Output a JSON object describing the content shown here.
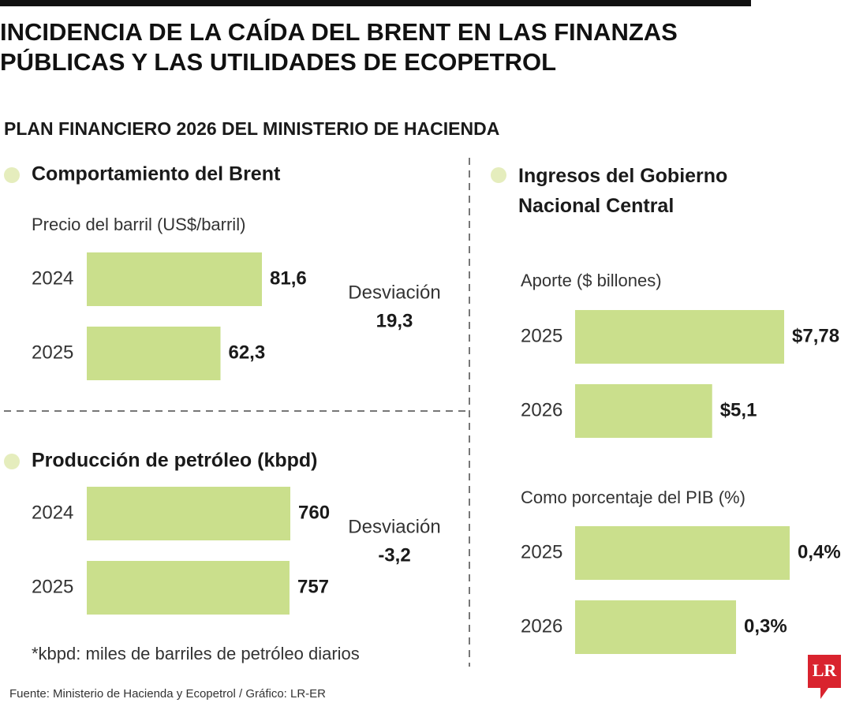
{
  "title": "INCIDENCIA DE LA CAÍDA DEL BRENT EN LAS FINANZAS PÚBLICAS Y LAS UTILIDADES DE ECOPETROL",
  "subtitle": "PLAN FINANCIERO 2026 DEL MINISTERIO DE HACIENDA",
  "source": "Fuente: Ministerio de Hacienda y Ecopetrol / Gráfico: LR-ER",
  "logo": "LR",
  "chart_data": [
    {
      "type": "bar",
      "title": "Comportamiento del Brent",
      "subtitle": "Precio del barril (US$/barril)",
      "categories": [
        "2024",
        "2025"
      ],
      "values": [
        81.6,
        62.3
      ],
      "value_labels": [
        "81,6",
        "62,3"
      ],
      "color": "#cadf8c",
      "deviation": {
        "label": "Desviación",
        "value": "19,3"
      }
    },
    {
      "type": "bar",
      "title": "Producción de petróleo (kbpd)",
      "categories": [
        "2024",
        "2025"
      ],
      "values": [
        760,
        757
      ],
      "color": "#cadf8c",
      "deviation": {
        "label": "Desviación",
        "value": "-3,2"
      },
      "note": "*kbpd: miles de barriles de petróleo diarios"
    },
    {
      "type": "bar",
      "title": "Ingresos del Gobierno Nacional Central",
      "subtitle": "Aporte ($ billones)",
      "categories": [
        "2025",
        "2026"
      ],
      "values": [
        7.78,
        5.1
      ],
      "value_labels": [
        "$7,78",
        "$5,1"
      ],
      "color": "#cadf8c"
    },
    {
      "type": "bar",
      "subtitle": "Como porcentaje del PIB (%)",
      "categories": [
        "2025",
        "2026"
      ],
      "values": [
        0.4,
        0.3
      ],
      "value_labels": [
        "0,4%",
        "0,3%"
      ],
      "color": "#cadf8c"
    }
  ]
}
